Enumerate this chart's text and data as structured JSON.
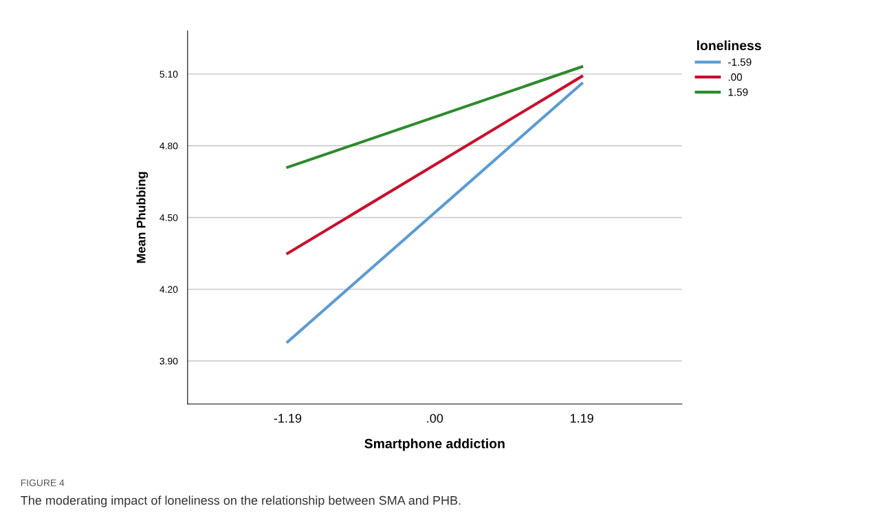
{
  "chart_data": {
    "type": "line",
    "xlabel": "Smartphone addiction",
    "ylabel": "Mean Phubbing",
    "legend_title": "loneliness",
    "legend": "top right",
    "x": [
      -1.19,
      1.19
    ],
    "series": [
      {
        "name": "-1.59",
        "color": "#5b9bd5",
        "values": [
          3.98,
          5.06
        ]
      },
      {
        "name": ".00",
        "color": "#c8102e",
        "values": [
          4.35,
          5.09
        ]
      },
      {
        "name": "1.59",
        "color": "#2e8b2e",
        "values": [
          4.71,
          5.13
        ]
      }
    ],
    "xlim": [
      -2.0,
      2.0
    ],
    "xticks": [
      -1.19,
      {
        "value": 0,
        "label": ".00"
      },
      1.19
    ],
    "ylim": [
      3.72,
      5.28
    ],
    "yticks": [
      {
        "value": 3.9,
        "label": "3.90"
      },
      {
        "value": 4.2,
        "label": "4.20"
      },
      {
        "value": 4.5,
        "label": "4.50"
      },
      {
        "value": 4.8,
        "label": "4.80"
      },
      {
        "value": 5.1,
        "label": "5.10"
      }
    ],
    "grid": "y",
    "marker": "none",
    "line_style": "solid",
    "annotations": [
      "FIGURE 4",
      "The moderating impact of loneliness on the relationship between SMA and PHB."
    ]
  }
}
